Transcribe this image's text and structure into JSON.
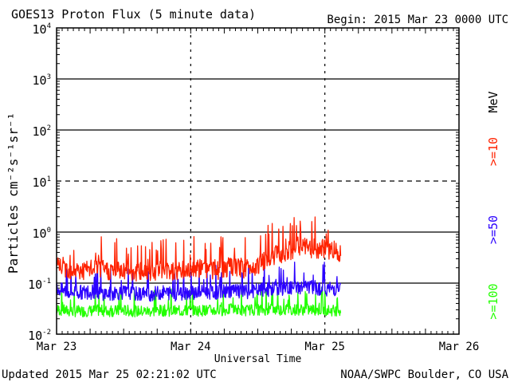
{
  "header": {
    "title": "GOES13 Proton Flux (5 minute data)",
    "begin": "Begin: 2015 Mar 23 0000 UTC"
  },
  "footer": {
    "updated": "Updated 2015 Mar 25 02:21:02 UTC",
    "credit": "NOAA/SWPC Boulder, CO USA"
  },
  "colors": {
    "ge10": "#ff2200",
    "ge50": "#2a00ff",
    "ge100": "#22ff00",
    "axis": "#000000",
    "background": "#ffffff"
  },
  "chart_data": {
    "type": "line",
    "title": "GOES13 Proton Flux (5 minute data)",
    "xlabel": "Universal Time",
    "ylabel": "Particles cm⁻²s⁻¹sr⁻¹",
    "yscale": "log",
    "ylim": [
      0.01,
      10000
    ],
    "xlim": [
      0,
      3
    ],
    "x_ticks": [
      {
        "value": 0,
        "label": "Mar 23"
      },
      {
        "value": 1,
        "label": "Mar 24"
      },
      {
        "value": 2,
        "label": "Mar 25"
      },
      {
        "value": 3,
        "label": "Mar 26"
      }
    ],
    "y_ticks": [
      {
        "exp": -2,
        "base": "10",
        "sup": "-2"
      },
      {
        "exp": -1,
        "base": "10",
        "sup": "-1"
      },
      {
        "exp": 0,
        "base": "10",
        "sup": "0"
      },
      {
        "exp": 1,
        "base": "10",
        "sup": "1"
      },
      {
        "exp": 2,
        "base": "10",
        "sup": "2"
      },
      {
        "exp": 3,
        "base": "10",
        "sup": "3"
      },
      {
        "exp": 4,
        "base": "10",
        "sup": "4"
      }
    ],
    "dashed_reference_exp": 1,
    "legend": {
      "unit": "MeV",
      "entries": [
        ">=10",
        ">=50",
        ">=100"
      ],
      "placement": "right"
    },
    "series": [
      {
        "name": ">=10 MeV",
        "color_key": "ge10",
        "x": [
          0.0,
          0.1,
          0.2,
          0.3,
          0.4,
          0.5,
          0.6,
          0.7,
          0.8,
          0.9,
          1.0,
          1.1,
          1.2,
          1.3,
          1.4,
          1.5,
          1.6,
          1.7,
          1.8,
          1.9,
          2.0,
          2.05,
          2.12
        ],
        "y": [
          0.2,
          0.16,
          0.15,
          0.17,
          0.15,
          0.16,
          0.14,
          0.15,
          0.16,
          0.15,
          0.16,
          0.17,
          0.16,
          0.18,
          0.17,
          0.2,
          0.3,
          0.35,
          0.45,
          0.42,
          0.4,
          0.4,
          0.35
        ]
      },
      {
        "name": ">=50 MeV",
        "color_key": "ge50",
        "x": [
          0.0,
          0.1,
          0.2,
          0.3,
          0.4,
          0.5,
          0.6,
          0.7,
          0.8,
          0.9,
          1.0,
          1.1,
          1.2,
          1.3,
          1.4,
          1.5,
          1.6,
          1.7,
          1.8,
          1.9,
          2.0,
          2.05,
          2.12
        ],
        "y": [
          0.07,
          0.06,
          0.06,
          0.06,
          0.055,
          0.06,
          0.055,
          0.055,
          0.06,
          0.055,
          0.06,
          0.06,
          0.06,
          0.065,
          0.06,
          0.065,
          0.07,
          0.07,
          0.075,
          0.075,
          0.07,
          0.07,
          0.07
        ]
      },
      {
        "name": ">=100 MeV",
        "color_key": "ge100",
        "x": [
          0.0,
          0.1,
          0.2,
          0.3,
          0.4,
          0.5,
          0.6,
          0.7,
          0.8,
          0.9,
          1.0,
          1.1,
          1.2,
          1.3,
          1.4,
          1.5,
          1.6,
          1.7,
          1.8,
          1.9,
          2.0,
          2.05,
          2.12
        ],
        "y": [
          0.028,
          0.026,
          0.026,
          0.027,
          0.026,
          0.027,
          0.026,
          0.026,
          0.027,
          0.026,
          0.027,
          0.027,
          0.027,
          0.028,
          0.027,
          0.028,
          0.028,
          0.028,
          0.028,
          0.028,
          0.027,
          0.027,
          0.027
        ]
      }
    ]
  }
}
